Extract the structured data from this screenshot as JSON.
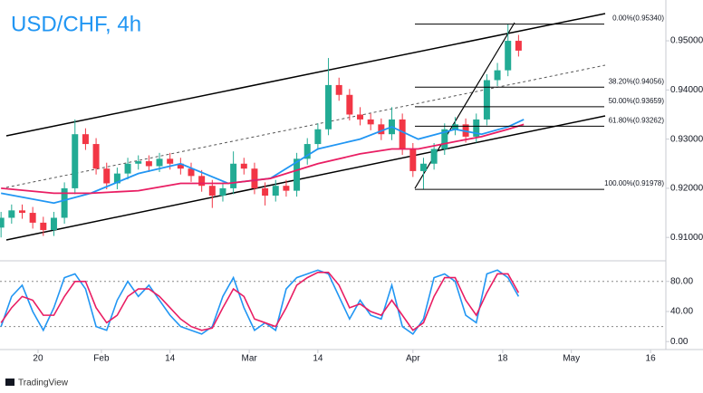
{
  "chart_data": [
    {
      "type": "candlestick",
      "title": "USD/CHF, 4h",
      "watermark": "TradingView",
      "up_color": "#22ab94",
      "down_color": "#f23645",
      "xlim": [
        12.8,
        138.9
      ],
      "ylim": [
        0.9058,
        0.9583
      ],
      "yticks": [
        {
          "value": 0.95,
          "label": "0.95000"
        },
        {
          "value": 0.94,
          "label": "0.94000"
        },
        {
          "value": 0.93,
          "label": "0.93000"
        },
        {
          "value": 0.92,
          "label": "0.92000"
        },
        {
          "value": 0.91,
          "label": "0.91000"
        }
      ],
      "x": [
        13,
        15,
        17,
        19,
        21,
        23,
        25,
        27,
        29,
        31,
        33,
        35,
        37,
        39,
        41,
        43,
        45,
        47,
        49,
        51,
        53,
        55,
        57,
        59,
        61,
        63,
        65,
        67,
        69,
        71,
        73,
        75,
        77,
        79,
        81,
        83,
        85,
        87,
        89,
        91,
        93,
        95,
        97,
        99,
        101,
        103,
        105,
        107,
        109,
        111
      ],
      "open": [
        0.912,
        0.914,
        0.9155,
        0.915,
        0.913,
        0.9115,
        0.914,
        0.92,
        0.931,
        0.929,
        0.924,
        0.921,
        0.923,
        0.925,
        0.9255,
        0.9245,
        0.926,
        0.925,
        0.924,
        0.9225,
        0.9205,
        0.9185,
        0.92,
        0.925,
        0.924,
        0.92,
        0.9185,
        0.9205,
        0.9195,
        0.926,
        0.929,
        0.932,
        0.941,
        0.939,
        0.935,
        0.934,
        0.933,
        0.931,
        0.934,
        0.928,
        0.9235,
        0.925,
        0.928,
        0.932,
        0.933,
        0.9305,
        0.934,
        0.942,
        0.944,
        0.95
      ],
      "high": [
        0.9152,
        0.9167,
        0.9167,
        0.9162,
        0.9142,
        0.9152,
        0.9212,
        0.934,
        0.9322,
        0.9302,
        0.9252,
        0.9242,
        0.9262,
        0.9267,
        0.9267,
        0.9272,
        0.9272,
        0.9262,
        0.9252,
        0.9237,
        0.9217,
        0.9212,
        0.9275,
        0.9262,
        0.9252,
        0.9212,
        0.9217,
        0.9217,
        0.9272,
        0.9302,
        0.9332,
        0.9465,
        0.9425,
        0.9402,
        0.9365,
        0.9352,
        0.9342,
        0.9365,
        0.9352,
        0.9292,
        0.9262,
        0.9292,
        0.9332,
        0.9345,
        0.9342,
        0.9352,
        0.9432,
        0.9455,
        0.9534,
        0.9512
      ],
      "low": [
        0.91,
        0.9128,
        0.9138,
        0.9118,
        0.9103,
        0.9103,
        0.9128,
        0.9188,
        0.9278,
        0.9228,
        0.9198,
        0.9198,
        0.9218,
        0.9238,
        0.9233,
        0.9233,
        0.9238,
        0.9228,
        0.9213,
        0.9193,
        0.916,
        0.9173,
        0.9188,
        0.9228,
        0.9188,
        0.9165,
        0.9173,
        0.9183,
        0.9183,
        0.9248,
        0.9278,
        0.9308,
        0.9378,
        0.9338,
        0.9328,
        0.9318,
        0.9298,
        0.9298,
        0.9268,
        0.9223,
        0.9198,
        0.9238,
        0.9268,
        0.9308,
        0.9293,
        0.9293,
        0.9328,
        0.9408,
        0.9428,
        0.9468
      ],
      "close": [
        0.914,
        0.9155,
        0.915,
        0.913,
        0.9115,
        0.914,
        0.92,
        0.931,
        0.929,
        0.924,
        0.921,
        0.923,
        0.925,
        0.9255,
        0.9245,
        0.926,
        0.925,
        0.924,
        0.9225,
        0.9205,
        0.9185,
        0.92,
        0.925,
        0.924,
        0.92,
        0.9185,
        0.9205,
        0.9195,
        0.926,
        0.929,
        0.932,
        0.941,
        0.939,
        0.935,
        0.934,
        0.933,
        0.931,
        0.934,
        0.928,
        0.9235,
        0.925,
        0.928,
        0.932,
        0.933,
        0.9305,
        0.934,
        0.942,
        0.944,
        0.95,
        0.948
      ],
      "overlays": [
        {
          "color": "#2196f3",
          "x": [
            13,
            23,
            30,
            39,
            47,
            56,
            64,
            73,
            81,
            87,
            92,
            99,
            104,
            109,
            112
          ],
          "values": [
            0.919,
            0.917,
            0.919,
            0.923,
            0.925,
            0.921,
            0.922,
            0.928,
            0.93,
            0.9325,
            0.93,
            0.932,
            0.931,
            0.9325,
            0.934
          ]
        },
        {
          "color": "#e91e63",
          "x": [
            13,
            23,
            30,
            39,
            47,
            56,
            64,
            73,
            81,
            87,
            92,
            99,
            104,
            109,
            112
          ],
          "values": [
            0.92,
            0.919,
            0.919,
            0.9195,
            0.921,
            0.921,
            0.922,
            0.925,
            0.927,
            0.928,
            0.928,
            0.9295,
            0.9305,
            0.932,
            0.933
          ]
        }
      ],
      "fib_levels": [
        {
          "label": "0.00%(0.95340)",
          "value": 0.9534
        },
        {
          "label": "38.20%(0.94056)",
          "value": 0.94056
        },
        {
          "label": "50.00%(0.93659)",
          "value": 0.93659
        },
        {
          "label": "61.80%(0.93262)",
          "value": 0.93262
        },
        {
          "label": "100.00%(0.91978)",
          "value": 0.91978
        }
      ]
    },
    {
      "type": "line",
      "xlim": [
        12.8,
        138.9
      ],
      "ylim": [
        -13,
        105
      ],
      "yticks": [
        {
          "value": 80,
          "label": "80.00"
        },
        {
          "value": 40,
          "label": "40.00"
        },
        {
          "value": 0,
          "label": "0.00"
        }
      ],
      "bands": [
        20,
        80
      ],
      "xticks": [
        {
          "value": 20,
          "label": "20"
        },
        {
          "value": 32,
          "label": "Feb"
        },
        {
          "value": 45,
          "label": "14"
        },
        {
          "value": 60,
          "label": "Mar"
        },
        {
          "value": 73,
          "label": "14"
        },
        {
          "value": 91,
          "label": "Apr"
        },
        {
          "value": 108,
          "label": "18"
        },
        {
          "value": 121,
          "label": "May"
        },
        {
          "value": 136,
          "label": "16"
        }
      ],
      "x": [
        13,
        15,
        17,
        19,
        21,
        23,
        25,
        27,
        29,
        31,
        33,
        35,
        37,
        39,
        41,
        43,
        45,
        47,
        49,
        51,
        53,
        55,
        57,
        59,
        61,
        63,
        65,
        67,
        69,
        71,
        73,
        75,
        77,
        79,
        81,
        83,
        85,
        87,
        89,
        91,
        93,
        95,
        97,
        99,
        101,
        103,
        105,
        107,
        109,
        111
      ],
      "series": [
        {
          "color": "#2196f3",
          "values": [
            20,
            60,
            75,
            40,
            15,
            45,
            85,
            90,
            70,
            20,
            15,
            55,
            80,
            60,
            75,
            55,
            35,
            20,
            15,
            10,
            20,
            60,
            85,
            45,
            15,
            25,
            15,
            70,
            85,
            90,
            95,
            90,
            60,
            30,
            55,
            35,
            30,
            75,
            20,
            10,
            30,
            85,
            90,
            80,
            35,
            25,
            90,
            95,
            85,
            60
          ]
        },
        {
          "color": "#e91e63",
          "values": [
            25,
            45,
            60,
            55,
            35,
            35,
            60,
            80,
            80,
            45,
            25,
            35,
            60,
            70,
            70,
            60,
            45,
            30,
            20,
            15,
            18,
            45,
            70,
            60,
            30,
            25,
            20,
            45,
            75,
            85,
            92,
            92,
            75,
            45,
            50,
            40,
            35,
            55,
            35,
            15,
            25,
            60,
            85,
            85,
            55,
            35,
            65,
            90,
            90,
            65
          ]
        }
      ]
    }
  ]
}
